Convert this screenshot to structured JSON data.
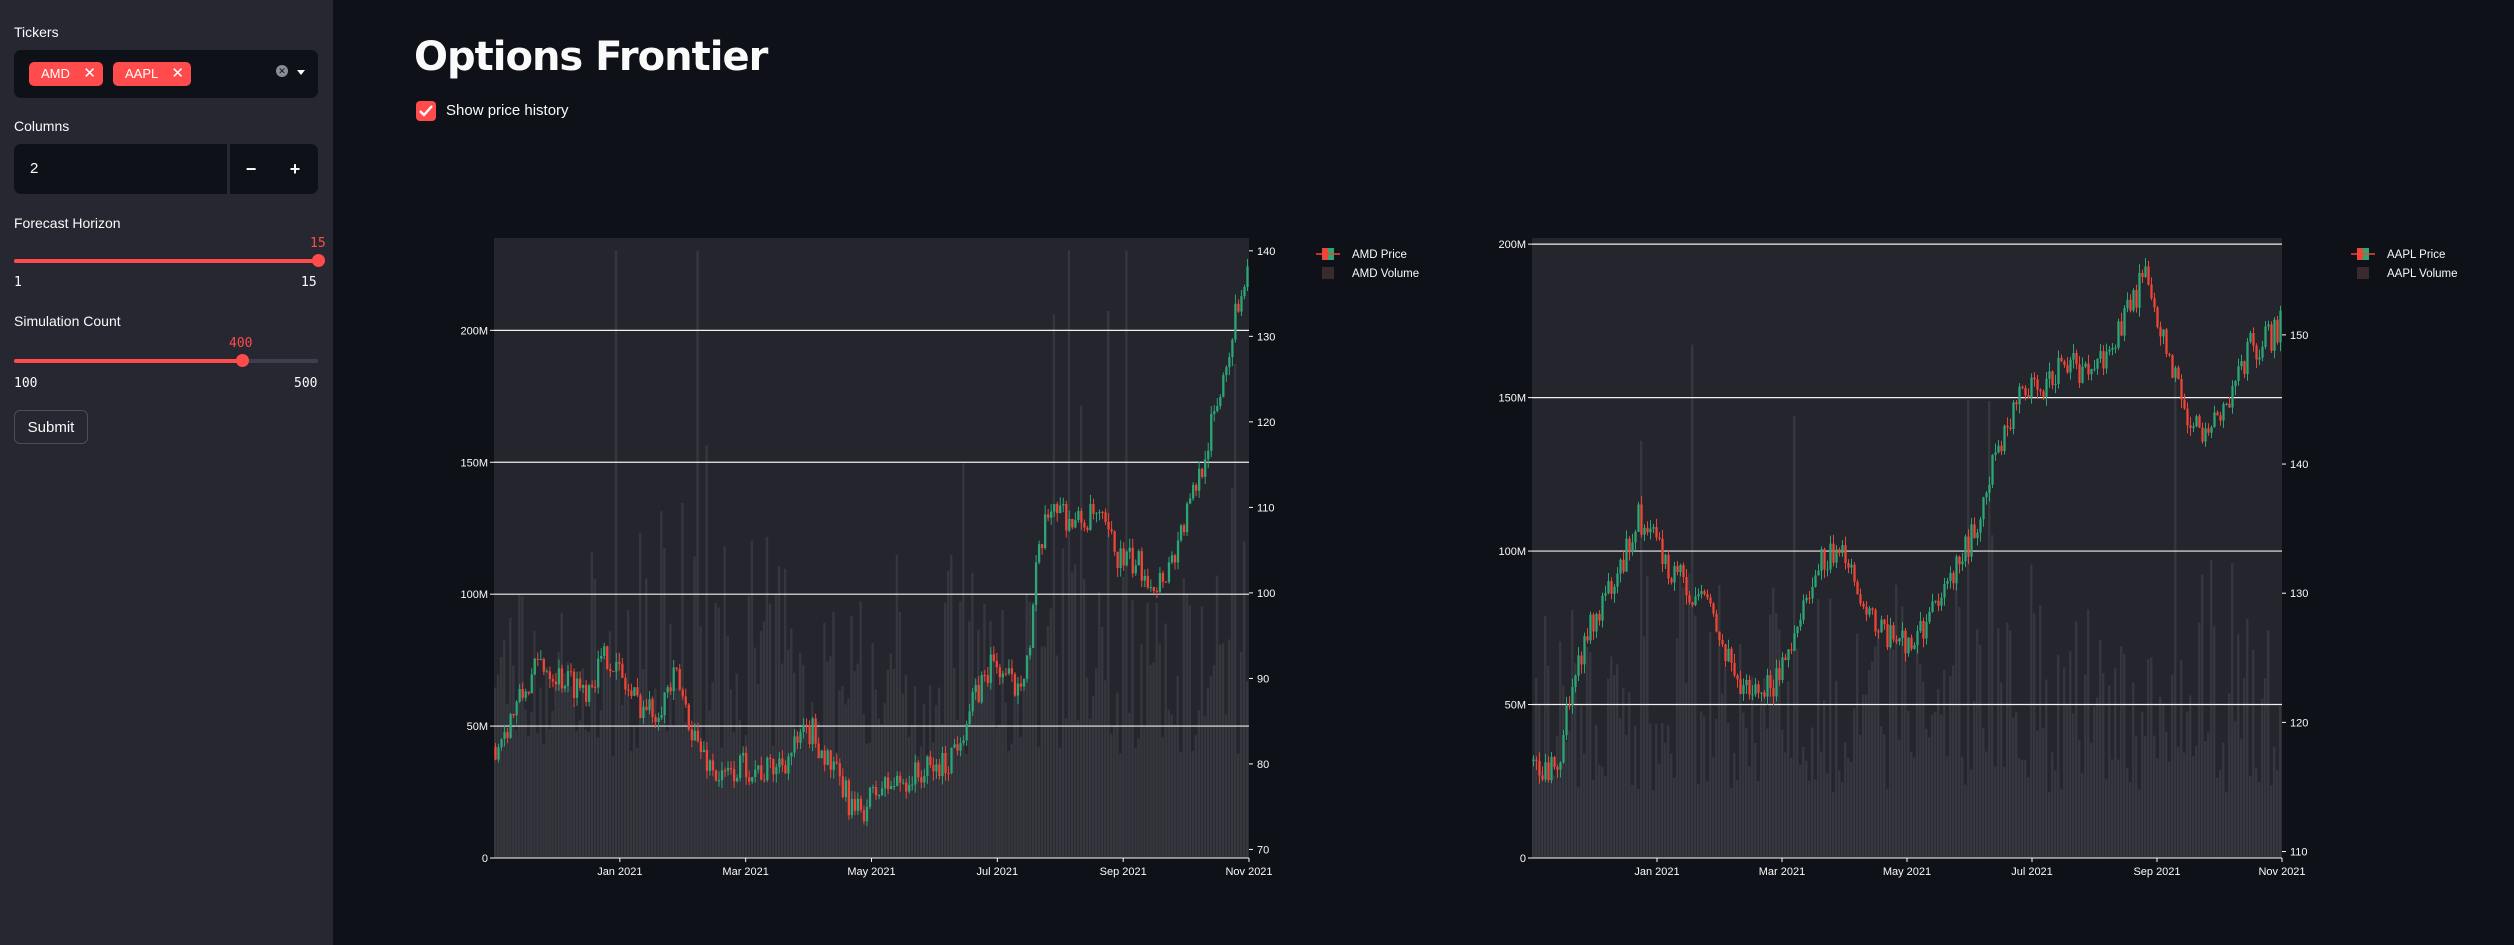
{
  "sidebar": {
    "tickers_label": "Tickers",
    "tickers": [
      "AMD",
      "AAPL"
    ],
    "columns_label": "Columns",
    "columns_value": "2",
    "minus": "−",
    "plus": "+",
    "horizon_label": "Forecast Horizon",
    "horizon_value": "15",
    "horizon_min": "1",
    "horizon_max": "15",
    "horizon_fraction": 1.0,
    "sim_label": "Simulation Count",
    "sim_value": "400",
    "sim_min": "100",
    "sim_max": "500",
    "sim_fraction": 0.75,
    "submit_label": "Submit"
  },
  "main": {
    "title": "Options Frontier",
    "show_history_label": "Show price history",
    "show_history_checked": true
  },
  "colors": {
    "accent": "#ff4b4b",
    "up": "#2ca676",
    "down": "#ef4536",
    "volume": "#3a3a42"
  },
  "chart_data": [
    {
      "type": "candlestick",
      "ticker": "AMD",
      "series": [
        {
          "name": "AMD Price"
        },
        {
          "name": "AMD Volume"
        }
      ],
      "x_ticks": [
        "Jan 2021",
        "Mar 2021",
        "May 2021",
        "Jul 2021",
        "Sep 2021",
        "Nov 2021"
      ],
      "x_range": [
        "2020-11-01",
        "2021-11-01"
      ],
      "volume_ticks": [
        "0",
        "50M",
        "100M",
        "150M",
        "200M"
      ],
      "volume_range": [
        0,
        235000000
      ],
      "price_ticks": [
        "70",
        "80",
        "90",
        "100",
        "110",
        "120",
        "130",
        "140"
      ],
      "price_range": [
        69,
        141.5
      ],
      "price_path": [
        [
          0,
          82
        ],
        [
          0.03,
          87
        ],
        [
          0.06,
          92
        ],
        [
          0.09,
          90
        ],
        [
          0.12,
          89
        ],
        [
          0.15,
          93
        ],
        [
          0.18,
          88
        ],
        [
          0.21,
          86
        ],
        [
          0.24,
          90
        ],
        [
          0.27,
          82
        ],
        [
          0.3,
          78
        ],
        [
          0.33,
          80
        ],
        [
          0.36,
          79
        ],
        [
          0.39,
          81
        ],
        [
          0.42,
          84
        ],
        [
          0.45,
          79
        ],
        [
          0.48,
          74
        ],
        [
          0.51,
          77
        ],
        [
          0.54,
          78
        ],
        [
          0.57,
          79
        ],
        [
          0.6,
          80
        ],
        [
          0.63,
          86
        ],
        [
          0.66,
          92
        ],
        [
          0.69,
          89
        ],
        [
          0.71,
          93
        ],
        [
          0.72,
          103
        ],
        [
          0.74,
          111
        ],
        [
          0.77,
          108
        ],
        [
          0.8,
          109
        ],
        [
          0.83,
          104
        ],
        [
          0.86,
          103
        ],
        [
          0.88,
          101
        ],
        [
          0.9,
          104
        ],
        [
          0.93,
          112
        ],
        [
          0.96,
          122
        ],
        [
          0.99,
          135
        ],
        [
          1.0,
          138
        ]
      ],
      "volume_level": [
        55000000,
        190000000
      ]
    },
    {
      "type": "candlestick",
      "ticker": "AAPL",
      "series": [
        {
          "name": "AAPL Price"
        },
        {
          "name": "AAPL Volume"
        }
      ],
      "x_ticks": [
        "Jan 2021",
        "Mar 2021",
        "May 2021",
        "Jul 2021",
        "Sep 2021",
        "Nov 2021"
      ],
      "x_range": [
        "2020-11-01",
        "2021-11-01"
      ],
      "volume_ticks": [
        "0",
        "50M",
        "100M",
        "150M",
        "200M"
      ],
      "volume_range": [
        0,
        202000000
      ],
      "price_ticks": [
        "110",
        "120",
        "130",
        "140",
        "150"
      ],
      "price_range": [
        109.5,
        157.5
      ],
      "price_path": [
        [
          0,
          117
        ],
        [
          0.03,
          116
        ],
        [
          0.05,
          122
        ],
        [
          0.08,
          128
        ],
        [
          0.11,
          131
        ],
        [
          0.14,
          136
        ],
        [
          0.17,
          133
        ],
        [
          0.2,
          131
        ],
        [
          0.23,
          129
        ],
        [
          0.26,
          125
        ],
        [
          0.29,
          122
        ],
        [
          0.32,
          123
        ],
        [
          0.35,
          127
        ],
        [
          0.38,
          132
        ],
        [
          0.41,
          134
        ],
        [
          0.44,
          130
        ],
        [
          0.47,
          127
        ],
        [
          0.5,
          126
        ],
        [
          0.53,
          128
        ],
        [
          0.56,
          131
        ],
        [
          0.59,
          135
        ],
        [
          0.62,
          141
        ],
        [
          0.65,
          145
        ],
        [
          0.68,
          146
        ],
        [
          0.71,
          148
        ],
        [
          0.74,
          147
        ],
        [
          0.77,
          149
        ],
        [
          0.8,
          152
        ],
        [
          0.82,
          155
        ],
        [
          0.85,
          148
        ],
        [
          0.88,
          143
        ],
        [
          0.9,
          142
        ],
        [
          0.93,
          145
        ],
        [
          0.96,
          149
        ],
        [
          0.99,
          150
        ],
        [
          1.0,
          151
        ]
      ],
      "volume_level": [
        30000000,
        150000000
      ]
    }
  ]
}
